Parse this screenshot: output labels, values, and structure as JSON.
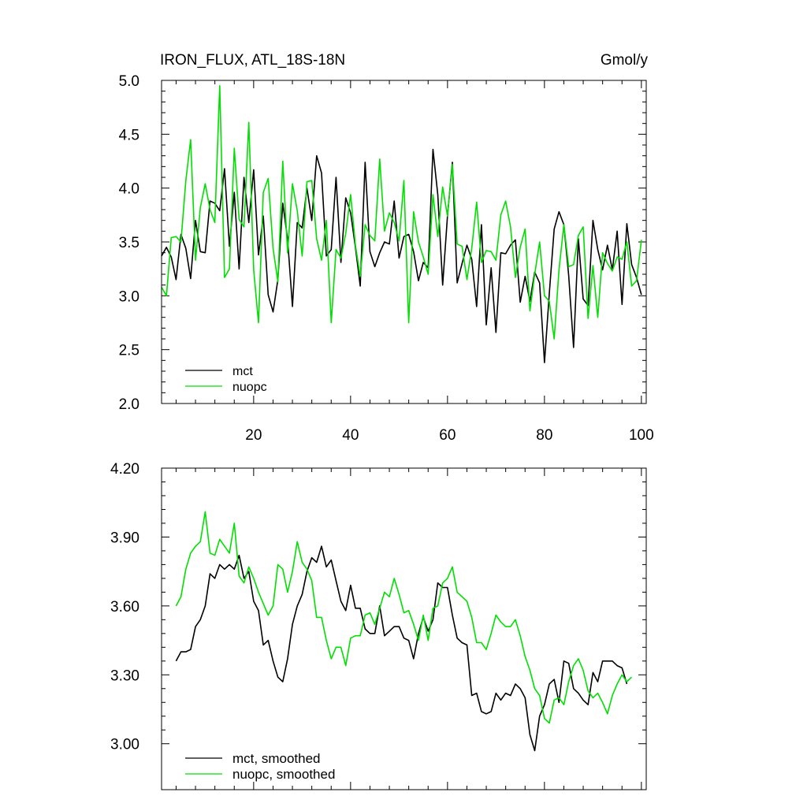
{
  "chart_data": [
    {
      "type": "line",
      "title": "IRON_FLUX, ATL_18S-18N",
      "units": "Gmol/y",
      "xlabel": "",
      "ylabel": "",
      "xlim": [
        1,
        101
      ],
      "ylim": [
        2.0,
        5.0
      ],
      "x_ticks": [
        20,
        40,
        60,
        80,
        100
      ],
      "y_ticks": [
        2.0,
        2.5,
        3.0,
        3.5,
        4.0,
        4.5,
        5.0
      ],
      "y_tick_labels": [
        "2.0",
        "2.5",
        "3.0",
        "3.5",
        "4.0",
        "4.5",
        "5.0"
      ],
      "grid": false,
      "legend_position": "bottom-left",
      "x_start": 1,
      "series": [
        {
          "name": "mct",
          "color": "#000000",
          "values": [
            3.37,
            3.45,
            3.36,
            3.15,
            3.57,
            3.44,
            3.16,
            3.7,
            3.41,
            3.4,
            3.88,
            3.86,
            3.79,
            4.18,
            3.46,
            3.96,
            3.25,
            4.1,
            3.68,
            4.17,
            3.38,
            3.74,
            3.01,
            2.85,
            3.15,
            3.86,
            3.53,
            2.9,
            3.68,
            3.63,
            4.0,
            3.7,
            4.3,
            4.14,
            3.37,
            3.43,
            4.1,
            3.31,
            3.91,
            3.77,
            3.45,
            3.09,
            4.24,
            3.41,
            3.27,
            3.4,
            3.5,
            3.48,
            3.88,
            3.35,
            3.55,
            3.57,
            3.41,
            3.14,
            3.31,
            3.26,
            4.36,
            3.94,
            3.1,
            3.74,
            4.24,
            3.12,
            3.3,
            3.47,
            3.34,
            2.9,
            3.66,
            2.73,
            3.26,
            2.66,
            3.4,
            3.39,
            3.47,
            3.52,
            2.94,
            3.18,
            2.95,
            3.22,
            3.12,
            2.38,
            3.02,
            3.62,
            3.78,
            3.66,
            3.19,
            2.52,
            3.53,
            2.97,
            2.91,
            3.7,
            3.43,
            3.24,
            3.47,
            3.24,
            3.6,
            2.92,
            3.67,
            3.29,
            3.17,
            3.01
          ]
        },
        {
          "name": "nuopc",
          "color": "#00e000",
          "values": [
            3.08,
            3.0,
            3.54,
            3.55,
            3.5,
            4.07,
            4.45,
            3.33,
            3.82,
            4.04,
            3.8,
            3.68,
            4.95,
            3.17,
            3.25,
            4.37,
            3.71,
            3.64,
            4.61,
            3.24,
            2.75,
            3.96,
            4.09,
            3.44,
            3.13,
            4.25,
            3.4,
            4.04,
            3.79,
            3.37,
            4.06,
            4.07,
            3.53,
            3.33,
            3.7,
            2.75,
            3.43,
            3.35,
            3.58,
            3.94,
            3.47,
            3.18,
            3.66,
            3.56,
            3.51,
            4.27,
            3.6,
            3.77,
            3.68,
            3.51,
            4.07,
            2.75,
            3.78,
            3.5,
            3.36,
            3.2,
            3.94,
            3.55,
            4.01,
            3.74,
            4.22,
            3.48,
            3.46,
            3.15,
            3.44,
            3.87,
            3.31,
            3.42,
            3.41,
            3.33,
            3.75,
            3.88,
            3.64,
            3.17,
            3.45,
            3.62,
            2.86,
            3.2,
            3.5,
            3.0,
            2.95,
            2.6,
            3.24,
            3.66,
            3.27,
            3.29,
            3.56,
            3.64,
            2.79,
            3.28,
            2.8,
            3.4,
            3.3,
            3.23,
            3.36,
            3.34,
            3.5,
            3.09,
            3.14,
            3.52
          ]
        }
      ]
    },
    {
      "type": "line",
      "title": "",
      "xlabel": "",
      "ylabel": "",
      "xlim": [
        1,
        101
      ],
      "ylim": [
        2.8,
        4.2
      ],
      "x_ticks": [
        20,
        40,
        60,
        80,
        100
      ],
      "y_ticks": [
        3.0,
        3.3,
        3.6,
        3.9,
        4.2
      ],
      "y_tick_labels": [
        "3.00",
        "3.30",
        "3.60",
        "3.90",
        "4.20"
      ],
      "grid": false,
      "legend_position": "bottom-left",
      "x_start": 4,
      "series": [
        {
          "name": "mct, smoothed",
          "color": "#000000",
          "values": [
            3.36,
            3.4,
            3.4,
            3.41,
            3.51,
            3.54,
            3.6,
            3.74,
            3.72,
            3.78,
            3.76,
            3.78,
            3.76,
            3.82,
            3.72,
            3.75,
            3.62,
            3.58,
            3.43,
            3.45,
            3.36,
            3.29,
            3.27,
            3.37,
            3.52,
            3.6,
            3.65,
            3.75,
            3.81,
            3.79,
            3.86,
            3.77,
            3.8,
            3.71,
            3.62,
            3.58,
            3.69,
            3.59,
            3.59,
            3.5,
            3.48,
            3.48,
            3.6,
            3.47,
            3.49,
            3.51,
            3.51,
            3.46,
            3.45,
            3.37,
            3.48,
            3.55,
            3.49,
            3.54,
            3.7,
            3.68,
            3.68,
            3.56,
            3.46,
            3.44,
            3.43,
            3.21,
            3.22,
            3.14,
            3.13,
            3.14,
            3.22,
            3.19,
            3.22,
            3.21,
            3.26,
            3.24,
            3.2,
            3.04,
            2.97,
            3.12,
            3.17,
            3.26,
            3.28,
            3.18,
            3.36,
            3.35,
            3.24,
            3.22,
            3.19,
            3.17,
            3.31,
            3.27,
            3.36,
            3.36,
            3.36,
            3.34,
            3.33,
            3.26
          ]
        },
        {
          "name": "nuopc, smoothed",
          "color": "#00e000",
          "values": [
            3.6,
            3.64,
            3.76,
            3.83,
            3.86,
            3.88,
            4.01,
            3.83,
            3.82,
            3.89,
            3.86,
            3.83,
            3.96,
            3.73,
            3.7,
            3.77,
            3.72,
            3.66,
            3.61,
            3.56,
            3.6,
            3.78,
            3.76,
            3.66,
            3.75,
            3.88,
            3.79,
            3.76,
            3.71,
            3.55,
            3.55,
            3.45,
            3.37,
            3.42,
            3.42,
            3.34,
            3.46,
            3.47,
            3.47,
            3.56,
            3.57,
            3.52,
            3.59,
            3.66,
            3.64,
            3.72,
            3.65,
            3.57,
            3.58,
            3.52,
            3.45,
            3.56,
            3.45,
            3.59,
            3.6,
            3.7,
            3.72,
            3.77,
            3.66,
            3.64,
            3.62,
            3.55,
            3.44,
            3.44,
            3.41,
            3.48,
            3.56,
            3.53,
            3.51,
            3.51,
            3.54,
            3.47,
            3.38,
            3.32,
            3.24,
            3.21,
            3.11,
            3.09,
            3.19,
            3.2,
            3.17,
            3.27,
            3.34,
            3.37,
            3.32,
            3.23,
            3.2,
            3.22,
            3.18,
            3.13,
            3.21,
            3.26,
            3.3,
            3.27,
            3.29
          ]
        }
      ]
    }
  ]
}
